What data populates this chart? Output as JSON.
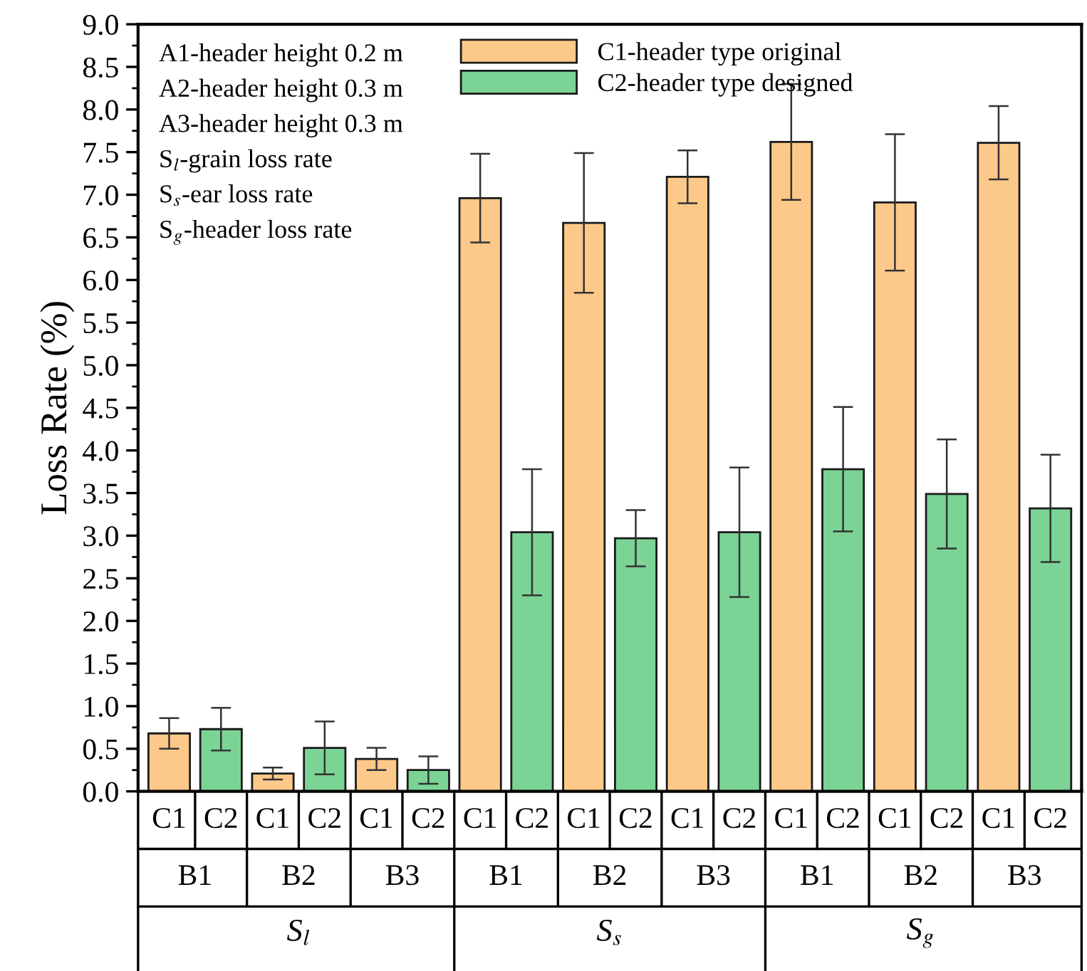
{
  "chart_data": {
    "type": "bar",
    "ylabel": "Loss Rate (%)",
    "categories": [
      "C1",
      "C2",
      "C1",
      "C2",
      "C1",
      "C2",
      "C1",
      "C2",
      "C1",
      "C2",
      "C1",
      "C2",
      "C1",
      "C2",
      "C1",
      "C2",
      "C1",
      "C2"
    ],
    "series": [
      {
        "name": "C1-header type original",
        "color": "#fdc98a",
        "values": [
          0.68,
          null,
          0.21,
          null,
          0.38,
          null,
          6.96,
          null,
          6.67,
          null,
          7.21,
          null,
          7.62,
          null,
          6.91,
          null,
          7.61,
          null
        ],
        "errors": [
          0.18,
          null,
          0.07,
          null,
          0.13,
          null,
          0.52,
          null,
          0.82,
          null,
          0.31,
          null,
          0.68,
          null,
          0.8,
          null,
          0.43,
          null
        ]
      },
      {
        "name": "C2-header type designed",
        "color": "#7bd495",
        "values": [
          null,
          0.73,
          null,
          0.51,
          null,
          0.25,
          null,
          3.04,
          null,
          2.97,
          null,
          3.04,
          null,
          3.78,
          null,
          3.49,
          null,
          3.32
        ],
        "errors": [
          null,
          0.25,
          null,
          0.31,
          null,
          0.16,
          null,
          0.74,
          null,
          0.33,
          null,
          0.76,
          null,
          0.73,
          null,
          0.64,
          null,
          0.63
        ]
      }
    ],
    "ylim": [
      0.0,
      9.0
    ],
    "yticks": [
      {
        "value": 0,
        "label": "0.0"
      },
      0.5,
      {
        "value": 1,
        "label": "1.0"
      },
      1.5,
      {
        "value": 2,
        "label": "2.0"
      },
      2.5,
      {
        "value": 3,
        "label": "3.0"
      },
      3.5,
      {
        "value": 4,
        "label": "4.0"
      },
      4.5,
      {
        "value": 5,
        "label": "5.0"
      },
      5.5,
      {
        "value": 6,
        "label": "6.0"
      },
      6.5,
      {
        "value": 7,
        "label": "7.0"
      },
      7.5,
      {
        "value": 8,
        "label": "8.0"
      },
      8.5,
      {
        "value": 9,
        "label": "9.0"
      }
    ],
    "grid": false,
    "legend": "top",
    "annotations": [
      "A1-header height 0.2 m",
      "A2-header height 0.3 m",
      "A3-header height 0.3 m",
      "S$_{l}$-grain loss rate",
      "S$_{s}$-ear loss rate",
      "S$_{g}$-header loss rate",
      "B1",
      "B2",
      "B3",
      "B1",
      "B2",
      "B3",
      "B1",
      "B2",
      "B3",
      "S$_{l}$",
      "S$_{s}$",
      "S$_{g}$"
    ]
  }
}
